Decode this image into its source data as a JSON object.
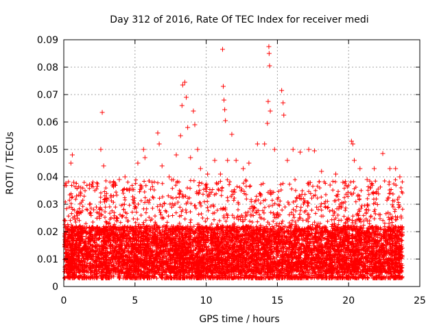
{
  "chart_data": {
    "type": "scatter",
    "title": "Day 312 of 2016, Rate Of TEC Index for receiver medi",
    "xlabel": "GPS time / hours",
    "ylabel": "ROTI / TECUs",
    "xlim": [
      0,
      25
    ],
    "ylim": [
      0,
      0.09
    ],
    "xticks": [
      0,
      5,
      10,
      15,
      20,
      25
    ],
    "xtick_labels": [
      "0",
      "5",
      "10",
      "15",
      "20",
      "25"
    ],
    "yticks": [
      0,
      0.01,
      0.02,
      0.03,
      0.04,
      0.05,
      0.06,
      0.07,
      0.08,
      0.09
    ],
    "ytick_labels": [
      "0",
      "0.01",
      "0.02",
      "0.03",
      "0.04",
      "0.05",
      "0.06",
      "0.07",
      "0.08",
      "0.09"
    ],
    "grid": true,
    "marker": "+",
    "color": "#ff0000",
    "series": [
      {
        "name": "ROTI",
        "points": [
          [
            0.1,
            0.024
          ],
          [
            0.3,
            0.021
          ],
          [
            0.5,
            0.045
          ],
          [
            0.6,
            0.048
          ],
          [
            0.7,
            0.038
          ],
          [
            0.9,
            0.033
          ],
          [
            1.2,
            0.036
          ],
          [
            1.8,
            0.03
          ],
          [
            2.1,
            0.028
          ],
          [
            2.6,
            0.05
          ],
          [
            2.7,
            0.0635
          ],
          [
            2.8,
            0.044
          ],
          [
            3.0,
            0.032
          ],
          [
            3.5,
            0.038
          ],
          [
            3.9,
            0.039
          ],
          [
            4.3,
            0.04
          ],
          [
            4.6,
            0.035
          ],
          [
            5.2,
            0.045
          ],
          [
            5.6,
            0.05
          ],
          [
            5.7,
            0.047
          ],
          [
            6.2,
            0.038
          ],
          [
            6.6,
            0.056
          ],
          [
            6.7,
            0.052
          ],
          [
            6.9,
            0.044
          ],
          [
            7.4,
            0.04
          ],
          [
            7.9,
            0.048
          ],
          [
            8.2,
            0.055
          ],
          [
            8.3,
            0.066
          ],
          [
            8.35,
            0.0735
          ],
          [
            8.5,
            0.0745
          ],
          [
            8.6,
            0.069
          ],
          [
            8.7,
            0.058
          ],
          [
            8.9,
            0.047
          ],
          [
            9.1,
            0.064
          ],
          [
            9.2,
            0.059
          ],
          [
            9.4,
            0.05
          ],
          [
            9.6,
            0.043
          ],
          [
            10.1,
            0.041
          ],
          [
            10.6,
            0.046
          ],
          [
            11.0,
            0.041
          ],
          [
            11.15,
            0.0865
          ],
          [
            11.2,
            0.073
          ],
          [
            11.25,
            0.068
          ],
          [
            11.3,
            0.0645
          ],
          [
            11.35,
            0.0605
          ],
          [
            11.5,
            0.046
          ],
          [
            11.8,
            0.0555
          ],
          [
            12.1,
            0.046
          ],
          [
            12.6,
            0.043
          ],
          [
            13.0,
            0.045
          ],
          [
            13.6,
            0.052
          ],
          [
            14.1,
            0.052
          ],
          [
            14.3,
            0.0595
          ],
          [
            14.35,
            0.0675
          ],
          [
            14.4,
            0.0875
          ],
          [
            14.42,
            0.085
          ],
          [
            14.45,
            0.0805
          ],
          [
            14.5,
            0.064
          ],
          [
            14.8,
            0.05
          ],
          [
            15.3,
            0.0715
          ],
          [
            15.4,
            0.067
          ],
          [
            15.45,
            0.0625
          ],
          [
            15.7,
            0.046
          ],
          [
            16.1,
            0.05
          ],
          [
            16.6,
            0.049
          ],
          [
            17.2,
            0.05
          ],
          [
            17.6,
            0.0495
          ],
          [
            18.1,
            0.042
          ],
          [
            18.7,
            0.037
          ],
          [
            19.1,
            0.041
          ],
          [
            19.6,
            0.038
          ],
          [
            20.2,
            0.053
          ],
          [
            20.3,
            0.052
          ],
          [
            20.4,
            0.046
          ],
          [
            20.8,
            0.043
          ],
          [
            21.3,
            0.039
          ],
          [
            21.8,
            0.043
          ],
          [
            22.4,
            0.0485
          ],
          [
            22.9,
            0.043
          ],
          [
            23.3,
            0.043
          ],
          [
            23.6,
            0.04
          ],
          [
            23.7,
            0.025
          ]
        ]
      }
    ]
  }
}
